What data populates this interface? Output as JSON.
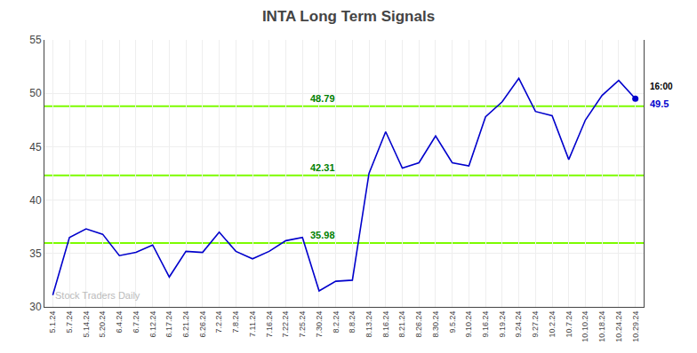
{
  "chart_data": {
    "type": "line",
    "title": "INTA Long Term Signals",
    "categories": [
      "5.1.24",
      "5.7.24",
      "5.14.24",
      "5.20.24",
      "6.4.24",
      "6.7.24",
      "6.12.24",
      "6.17.24",
      "6.21.24",
      "6.26.24",
      "7.2.24",
      "7.8.24",
      "7.11.24",
      "7.16.24",
      "7.22.24",
      "7.25.24",
      "7.30.24",
      "8.2.24",
      "8.8.24",
      "8.13.24",
      "8.16.24",
      "8.21.24",
      "8.26.24",
      "8.30.24",
      "9.5.24",
      "9.10.24",
      "9.16.24",
      "9.19.24",
      "9.24.24",
      "9.27.24",
      "10.2.24",
      "10.7.24",
      "10.10.24",
      "10.18.24",
      "10.24.24",
      "10.29.24"
    ],
    "values": [
      31.1,
      36.5,
      37.3,
      36.8,
      34.8,
      35.1,
      35.8,
      32.8,
      35.2,
      35.1,
      37.0,
      35.2,
      34.5,
      35.2,
      36.2,
      36.5,
      31.5,
      32.4,
      32.5,
      42.5,
      46.4,
      43.0,
      43.5,
      46.0,
      43.5,
      43.2,
      47.8,
      49.2,
      51.4,
      48.3,
      47.9,
      43.8,
      47.5,
      49.8,
      51.2,
      49.5
    ],
    "color": "#0000CC",
    "hlines": [
      {
        "value": 35.98,
        "label": "35.98",
        "color": "#7CFC00",
        "label_color": "green"
      },
      {
        "value": 42.31,
        "label": "42.31",
        "color": "#7CFC00",
        "label_color": "green"
      },
      {
        "value": 48.79,
        "label": "48.79",
        "color": "#7CFC00",
        "label_color": "green"
      }
    ],
    "dot": {
      "category": "10.29.24",
      "value": 49.5,
      "color": "#0000CC",
      "labels": [
        "16:00",
        "49.5"
      ]
    },
    "watermark": "Stock Traders Daily",
    "ylim": [
      30,
      55
    ],
    "yticks": [
      30,
      35,
      40,
      45,
      50,
      55
    ],
    "grid": true
  }
}
